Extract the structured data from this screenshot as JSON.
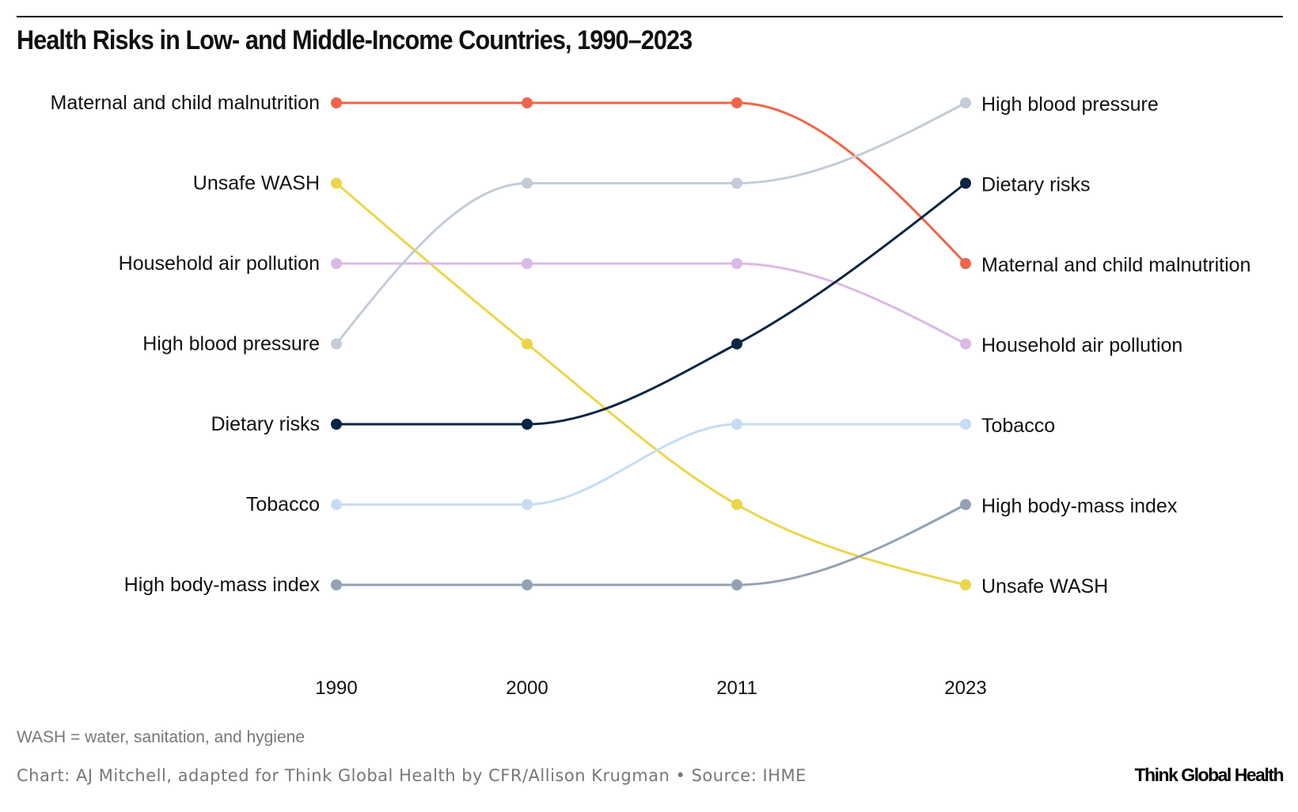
{
  "title": "Health Risks in Low- and Middle-Income Countries, 1990–2023",
  "footnote": "WASH = water, sanitation, and hygiene",
  "credit": "Chart: AJ Mitchell, adapted for Think Global Health by CFR/Allison Krugman • Source: IHME",
  "logo": "Think Global Health",
  "chart_data": {
    "type": "line",
    "subtype": "bump chart (rank)",
    "x": [
      "1990",
      "2000",
      "2011",
      "2023"
    ],
    "y_axis": "rank (1 = top)",
    "ylim": [
      1,
      7
    ],
    "grid": false,
    "legend": "direct labels left and right",
    "series": [
      {
        "name": "Maternal and child malnutrition",
        "color": "#f0654a",
        "ranks": [
          1,
          1,
          1,
          3
        ]
      },
      {
        "name": "Unsafe WASH",
        "color": "#ecd54a",
        "ranks": [
          2,
          4,
          6,
          7
        ]
      },
      {
        "name": "Household air pollution",
        "color": "#dcb8e6",
        "ranks": [
          3,
          3,
          3,
          4
        ]
      },
      {
        "name": "High blood pressure",
        "color": "#c3ccd8",
        "ranks": [
          4,
          2,
          2,
          1
        ]
      },
      {
        "name": "Dietary risks",
        "color": "#0b2545",
        "ranks": [
          5,
          5,
          4,
          2
        ]
      },
      {
        "name": "Tobacco",
        "color": "#c6dcf2",
        "ranks": [
          6,
          6,
          5,
          5
        ]
      },
      {
        "name": "High body-mass index",
        "color": "#94a1b5",
        "ranks": [
          7,
          7,
          7,
          6
        ]
      }
    ]
  }
}
